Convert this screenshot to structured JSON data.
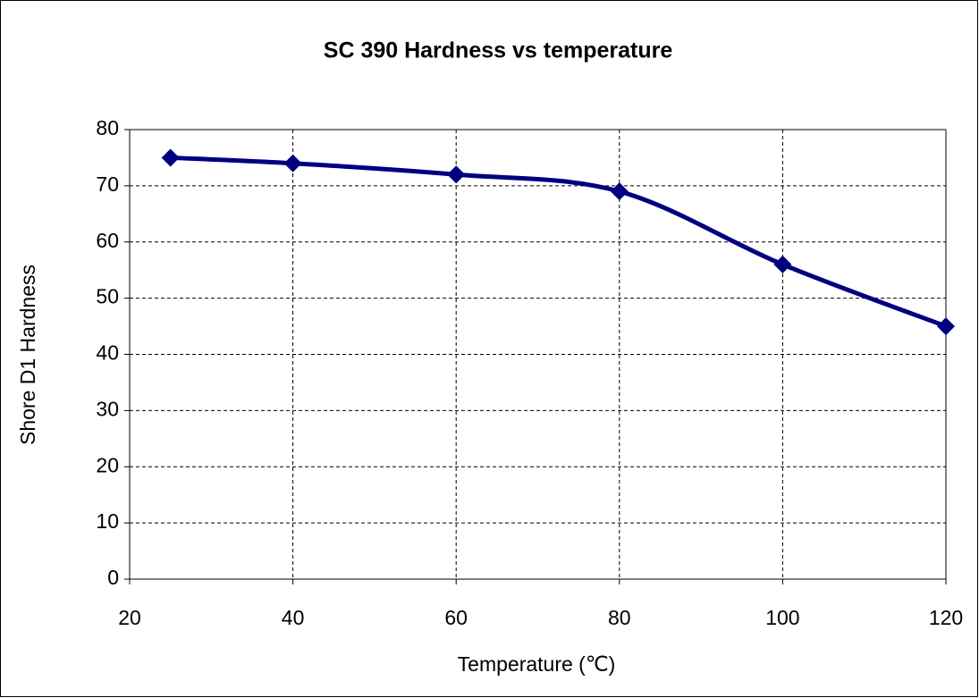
{
  "chart_data": {
    "type": "line",
    "title": "SC 390 Hardness vs temperature",
    "x_label": "Temperature (℃)",
    "y_label": "Shore D1 Hardness",
    "series": [
      {
        "name": "SC 390",
        "color": "#000080",
        "x": [
          25,
          40,
          60,
          80,
          100,
          120
        ],
        "values": [
          75,
          74,
          72,
          69,
          56,
          45
        ]
      }
    ],
    "xlim": [
      20,
      120
    ],
    "xticks": [
      20,
      40,
      60,
      80,
      100,
      120
    ],
    "ylim": [
      0,
      80
    ],
    "yticks": [
      0,
      10,
      20,
      30,
      40,
      50,
      60,
      70,
      80
    ],
    "grid": true,
    "smooth": true,
    "marker": "diamond"
  }
}
